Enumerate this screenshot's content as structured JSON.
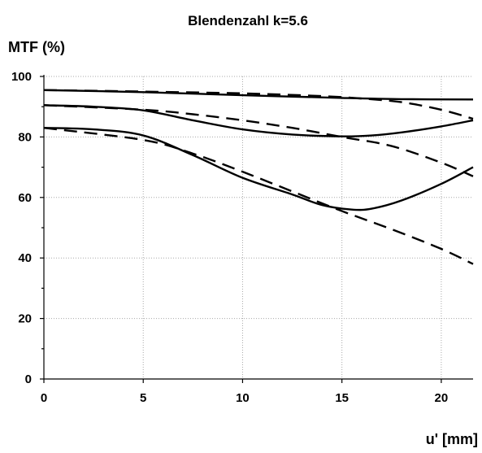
{
  "chart_data": {
    "type": "line",
    "title": "Blendenzahl k=5.6",
    "ylabel": "MTF (%)",
    "xlabel": "u' [mm]",
    "xlim": [
      0,
      21.6
    ],
    "ylim": [
      0,
      100
    ],
    "x_ticks": [
      "0",
      "5",
      "10",
      "15",
      "20"
    ],
    "y_ticks": [
      "0",
      "20",
      "40",
      "60",
      "80",
      "100"
    ],
    "grid": true,
    "legend": "none",
    "series": [
      {
        "style": "solid",
        "points": [
          [
            0,
            95.5
          ],
          [
            5,
            94.8
          ],
          [
            10,
            93.8
          ],
          [
            15,
            92.9
          ],
          [
            18,
            92.5
          ],
          [
            21.6,
            92.4
          ]
        ]
      },
      {
        "style": "dashed",
        "points": [
          [
            0,
            95.5
          ],
          [
            5,
            95.0
          ],
          [
            10,
            94.4
          ],
          [
            14,
            93.5
          ],
          [
            16,
            92.7
          ],
          [
            18,
            91.5
          ],
          [
            20,
            89.0
          ],
          [
            21.6,
            86.0
          ]
        ]
      },
      {
        "style": "solid",
        "points": [
          [
            0,
            90.5
          ],
          [
            2.5,
            90.0
          ],
          [
            5,
            88.8
          ],
          [
            7.5,
            85.5
          ],
          [
            10,
            82.5
          ],
          [
            12.5,
            80.8
          ],
          [
            15,
            80.2
          ],
          [
            16.5,
            80.5
          ],
          [
            18,
            81.5
          ],
          [
            20,
            83.5
          ],
          [
            21.6,
            85.5
          ]
        ]
      },
      {
        "style": "dashed",
        "points": [
          [
            0,
            90.5
          ],
          [
            5,
            89.0
          ],
          [
            7.5,
            87.5
          ],
          [
            10,
            85.5
          ],
          [
            12.5,
            83.0
          ],
          [
            15,
            80.0
          ],
          [
            17.5,
            77.0
          ],
          [
            20,
            71.5
          ],
          [
            21.6,
            67.0
          ]
        ]
      },
      {
        "style": "solid",
        "points": [
          [
            0,
            83.0
          ],
          [
            2.5,
            82.5
          ],
          [
            5,
            80.5
          ],
          [
            7.5,
            74.0
          ],
          [
            10,
            66.5
          ],
          [
            12.5,
            61.0
          ],
          [
            14,
            57.5
          ],
          [
            15.5,
            56.0
          ],
          [
            16.5,
            56.3
          ],
          [
            18,
            59.0
          ],
          [
            20,
            64.5
          ],
          [
            21.6,
            70.0
          ]
        ]
      },
      {
        "style": "dashed",
        "points": [
          [
            0,
            83.0
          ],
          [
            5,
            79.0
          ],
          [
            7.5,
            74.5
          ],
          [
            10,
            68.5
          ],
          [
            12.5,
            62.0
          ],
          [
            15,
            55.5
          ],
          [
            17.5,
            49.5
          ],
          [
            20,
            43.0
          ],
          [
            21.6,
            38.0
          ]
        ]
      }
    ]
  }
}
